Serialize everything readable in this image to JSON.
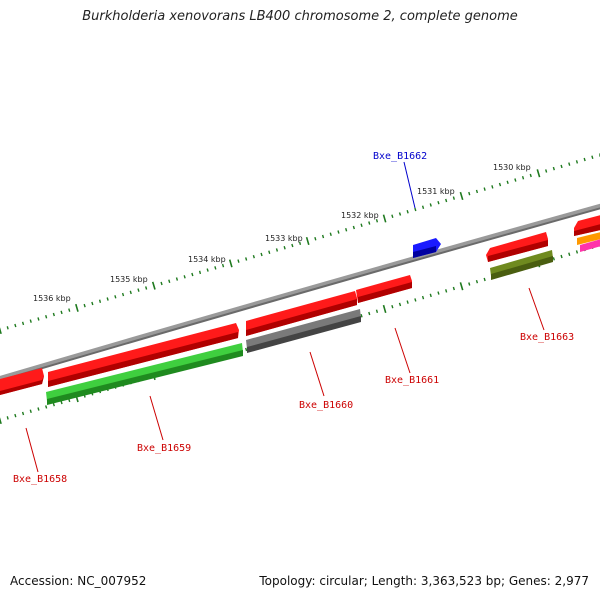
{
  "title": "Burkholderia xenovorans LB400 chromosome 2, complete genome",
  "footer": {
    "accession": "Accession: NC_007952",
    "summary": "Topology: circular; Length: 3,363,523 bp; Genes: 2,977"
  },
  "colors": {
    "backbone": "#7a7a7a",
    "tick": "#1f7a1f",
    "label_red": "#cc0000",
    "label_blue": "#0000cc",
    "gene_red": "#ff1a1a",
    "gene_green": "#3fcf3f",
    "gene_gray": "#6a6a6a",
    "gene_olive": "#6f8a1f",
    "gene_blue": "#1a1aff",
    "gene_orange": "#ff9900",
    "gene_magenta": "#ff33aa"
  },
  "scale_labels": [
    "1536 kbp",
    "1535 kbp",
    "1534 kbp",
    "1533 kbp",
    "1532 kbp",
    "1531 kbp",
    "1530 kbp"
  ],
  "gene_labels": [
    "Bxe_B1662",
    "Bxe_B1663",
    "Bxe_B1661",
    "Bxe_B1660",
    "Bxe_B1659",
    "Bxe_B1658"
  ]
}
